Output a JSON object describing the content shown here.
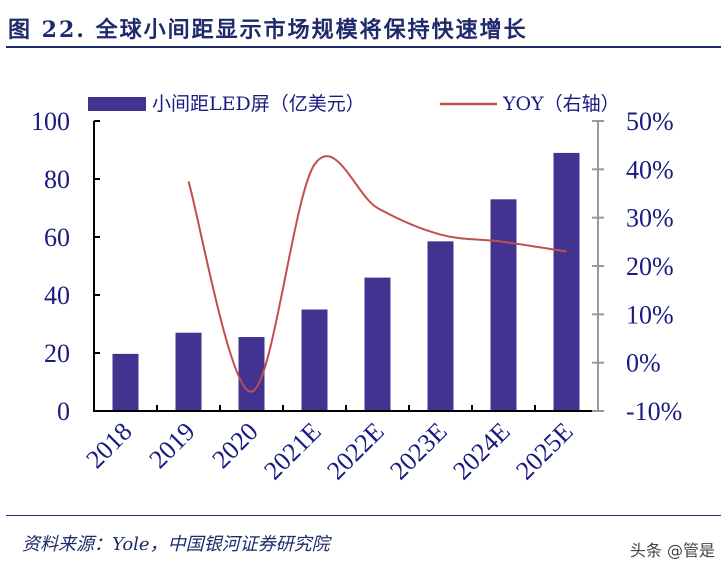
{
  "title": "图 22. 全球小间距显示市场规模将保持快速增长",
  "source": "资料来源：Yole，中国银河证券研究院",
  "watermark": "头条 @管是",
  "chart_data": {
    "type": "bar+line",
    "title": "",
    "categories": [
      "2018",
      "2019",
      "2020",
      "2021E",
      "2022E",
      "2023E",
      "2024E",
      "2025E"
    ],
    "series": [
      {
        "name": "小间距LED屏（亿美元）",
        "type": "bar",
        "axis": "left",
        "color": "#41338f",
        "values": [
          19.7,
          27,
          25.5,
          35,
          46,
          58.5,
          73,
          89
        ]
      },
      {
        "name": "YOY（右轴）",
        "type": "line",
        "axis": "right",
        "color": "#c0504d",
        "values": [
          null,
          37.5,
          -6,
          41,
          32,
          26.5,
          25,
          23
        ]
      }
    ],
    "left_axis": {
      "ylim": [
        0,
        100
      ],
      "ticks": [
        "0",
        "20",
        "40",
        "60",
        "80",
        "100"
      ]
    },
    "right_axis": {
      "ylim": [
        -10,
        50
      ],
      "ticks": [
        "-10%",
        "0%",
        "10%",
        "20%",
        "30%",
        "40%",
        "50%"
      ]
    },
    "legend_placement": "top",
    "grid": false
  }
}
